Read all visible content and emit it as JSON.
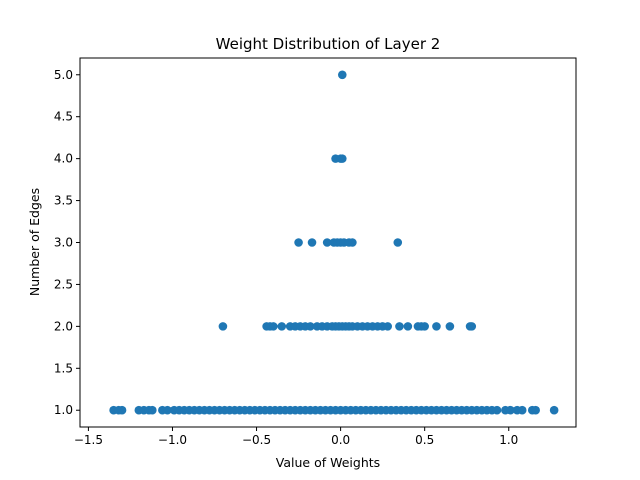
{
  "chart_data": {
    "type": "scatter",
    "title": "Weight Distribution of Layer 2",
    "xlabel": "Value of Weights",
    "ylabel": "Number of Edges",
    "xlim": [
      -1.55,
      1.4
    ],
    "ylim": [
      0.8,
      5.2
    ],
    "xticks": [
      -1.5,
      -1.0,
      -0.5,
      0.0,
      0.5,
      1.0
    ],
    "xtick_labels": [
      "−1.5",
      "−1.0",
      "−0.5",
      "0.0",
      "0.5",
      "1.0"
    ],
    "yticks": [
      1.0,
      1.5,
      2.0,
      2.5,
      3.0,
      3.5,
      4.0,
      4.5,
      5.0
    ],
    "ytick_labels": [
      "1.0",
      "1.5",
      "2.0",
      "2.5",
      "3.0",
      "3.5",
      "4.0",
      "4.5",
      "5.0"
    ],
    "grid": false,
    "marker_color": "#1f77b4",
    "series": [
      {
        "points": [
          [
            -1.35,
            1
          ],
          [
            -1.32,
            1
          ],
          [
            -1.3,
            1
          ],
          [
            -1.2,
            1
          ],
          [
            -1.17,
            1
          ],
          [
            -1.14,
            1
          ],
          [
            -1.12,
            1
          ],
          [
            -1.06,
            1
          ],
          [
            -1.03,
            1
          ],
          [
            -0.99,
            1
          ],
          [
            -0.96,
            1
          ],
          [
            -0.93,
            1
          ],
          [
            -0.9,
            1
          ],
          [
            -0.87,
            1
          ],
          [
            -0.84,
            1
          ],
          [
            -0.81,
            1
          ],
          [
            -0.78,
            1
          ],
          [
            -0.75,
            1
          ],
          [
            -0.72,
            1
          ],
          [
            -0.69,
            1
          ],
          [
            -0.66,
            1
          ],
          [
            -0.63,
            1
          ],
          [
            -0.6,
            1
          ],
          [
            -0.57,
            1
          ],
          [
            -0.54,
            1
          ],
          [
            -0.51,
            1
          ],
          [
            -0.48,
            1
          ],
          [
            -0.45,
            1
          ],
          [
            -0.42,
            1
          ],
          [
            -0.39,
            1
          ],
          [
            -0.36,
            1
          ],
          [
            -0.33,
            1
          ],
          [
            -0.3,
            1
          ],
          [
            -0.27,
            1
          ],
          [
            -0.24,
            1
          ],
          [
            -0.21,
            1
          ],
          [
            -0.18,
            1
          ],
          [
            -0.15,
            1
          ],
          [
            -0.12,
            1
          ],
          [
            -0.09,
            1
          ],
          [
            -0.06,
            1
          ],
          [
            -0.03,
            1
          ],
          [
            0.0,
            1
          ],
          [
            0.03,
            1
          ],
          [
            0.06,
            1
          ],
          [
            0.09,
            1
          ],
          [
            0.12,
            1
          ],
          [
            0.15,
            1
          ],
          [
            0.18,
            1
          ],
          [
            0.21,
            1
          ],
          [
            0.24,
            1
          ],
          [
            0.27,
            1
          ],
          [
            0.3,
            1
          ],
          [
            0.33,
            1
          ],
          [
            0.36,
            1
          ],
          [
            0.39,
            1
          ],
          [
            0.42,
            1
          ],
          [
            0.45,
            1
          ],
          [
            0.48,
            1
          ],
          [
            0.51,
            1
          ],
          [
            0.54,
            1
          ],
          [
            0.57,
            1
          ],
          [
            0.6,
            1
          ],
          [
            0.63,
            1
          ],
          [
            0.66,
            1
          ],
          [
            0.69,
            1
          ],
          [
            0.72,
            1
          ],
          [
            0.75,
            1
          ],
          [
            0.78,
            1
          ],
          [
            0.81,
            1
          ],
          [
            0.84,
            1
          ],
          [
            0.87,
            1
          ],
          [
            0.9,
            1
          ],
          [
            0.93,
            1
          ],
          [
            0.98,
            1
          ],
          [
            1.01,
            1
          ],
          [
            1.05,
            1
          ],
          [
            1.08,
            1
          ],
          [
            1.14,
            1
          ],
          [
            1.16,
            1
          ],
          [
            1.27,
            1
          ],
          [
            -0.7,
            2
          ],
          [
            -0.44,
            2
          ],
          [
            -0.42,
            2
          ],
          [
            -0.4,
            2
          ],
          [
            -0.35,
            2
          ],
          [
            -0.3,
            2
          ],
          [
            -0.27,
            2
          ],
          [
            -0.24,
            2
          ],
          [
            -0.21,
            2
          ],
          [
            -0.18,
            2
          ],
          [
            -0.14,
            2
          ],
          [
            -0.11,
            2
          ],
          [
            -0.08,
            2
          ],
          [
            -0.05,
            2
          ],
          [
            -0.03,
            2
          ],
          [
            -0.01,
            2
          ],
          [
            0.01,
            2
          ],
          [
            0.03,
            2
          ],
          [
            0.05,
            2
          ],
          [
            0.07,
            2
          ],
          [
            0.1,
            2
          ],
          [
            0.13,
            2
          ],
          [
            0.16,
            2
          ],
          [
            0.19,
            2
          ],
          [
            0.22,
            2
          ],
          [
            0.25,
            2
          ],
          [
            0.28,
            2
          ],
          [
            0.35,
            2
          ],
          [
            0.4,
            2
          ],
          [
            0.46,
            2
          ],
          [
            0.48,
            2
          ],
          [
            0.5,
            2
          ],
          [
            0.57,
            2
          ],
          [
            0.65,
            2
          ],
          [
            0.77,
            2
          ],
          [
            0.78,
            2
          ],
          [
            -0.25,
            3
          ],
          [
            -0.17,
            3
          ],
          [
            -0.08,
            3
          ],
          [
            -0.04,
            3
          ],
          [
            -0.02,
            3
          ],
          [
            0.0,
            3
          ],
          [
            0.02,
            3
          ],
          [
            0.05,
            3
          ],
          [
            0.07,
            3
          ],
          [
            0.34,
            3
          ],
          [
            -0.03,
            4
          ],
          [
            0.0,
            4
          ],
          [
            0.01,
            4
          ],
          [
            0.01,
            5
          ]
        ]
      }
    ]
  }
}
